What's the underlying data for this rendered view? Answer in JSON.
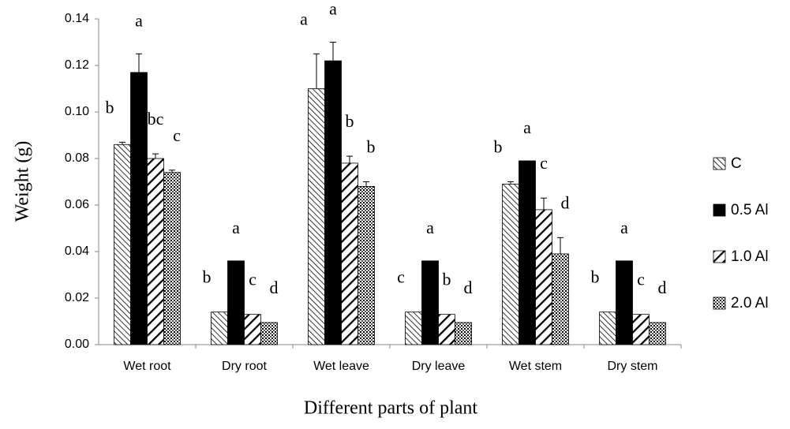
{
  "chart_data": {
    "type": "bar",
    "x_label": "Different parts of plant",
    "y_label": "Weight (g)",
    "categories": [
      "Wet root",
      "Dry root",
      "Wet leave",
      "Dry leave",
      "Wet stem",
      "Dry stem"
    ],
    "series": [
      {
        "name": "C",
        "color": "#000000",
        "pattern": "fine-backslash",
        "values": [
          0.086,
          0.014,
          0.11,
          0.014,
          0.069,
          0.014
        ],
        "errors": [
          0.001,
          0,
          0.015,
          0,
          0.001,
          0
        ],
        "letters": [
          "b",
          "b",
          "a",
          "c",
          "b",
          "b"
        ]
      },
      {
        "name": "0.5 Al",
        "color": "#000000",
        "pattern": "solid",
        "values": [
          0.117,
          0.036,
          0.122,
          0.036,
          0.079,
          0.036
        ],
        "errors": [
          0.008,
          0,
          0.008,
          0,
          0,
          0
        ],
        "letters": [
          "a",
          "a",
          "a",
          "a",
          "a",
          "a"
        ]
      },
      {
        "name": "1.0 Al",
        "color": "#000000",
        "pattern": "wide-slash",
        "values": [
          0.08,
          0.013,
          0.078,
          0.013,
          0.058,
          0.013
        ],
        "errors": [
          0.002,
          0,
          0.003,
          0,
          0.005,
          0
        ],
        "letters": [
          "bc",
          "c",
          "b",
          "b",
          "c",
          "c"
        ]
      },
      {
        "name": "2.0 Al",
        "color": "#000000",
        "pattern": "crosshatch",
        "values": [
          0.074,
          0.0095,
          0.068,
          0.0095,
          0.039,
          0.0095
        ],
        "errors": [
          0.001,
          0,
          0.002,
          0,
          0.007,
          0
        ],
        "letters": [
          "c",
          "d",
          "b",
          "d",
          "d",
          "d"
        ]
      }
    ],
    "ylim": [
      0,
      0.14
    ],
    "yticks": [
      {
        "value": 0,
        "label": "0.00"
      },
      {
        "value": 0.02,
        "label": "0.02"
      },
      {
        "value": 0.04,
        "label": "0.04"
      },
      {
        "value": 0.06,
        "label": "0.06"
      },
      {
        "value": 0.08,
        "label": "0.08"
      },
      {
        "value": 0.1,
        "label": "0.10"
      },
      {
        "value": 0.12,
        "label": "0.12"
      },
      {
        "value": 0.14,
        "label": "0.14"
      }
    ],
    "grid": false,
    "legend": "right"
  }
}
